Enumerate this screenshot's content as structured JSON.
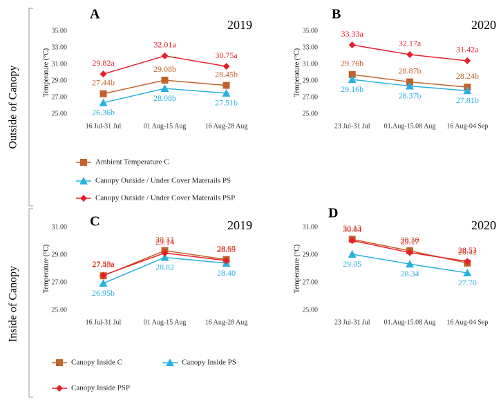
{
  "row_labels": [
    "Outside of Canopy",
    "Inside of Canopy"
  ],
  "chart_data": [
    {
      "type": "line",
      "title": "A",
      "subtitle": "2019",
      "y_label": "Temperature (°C)",
      "categories": [
        "16 Jul-31 Jul",
        "01 Aug-15 Aug",
        "16 Aug-28 Aug"
      ],
      "ylim": [
        25,
        35
      ],
      "yticks": [
        {
          "value": 25,
          "label": "25.00"
        },
        {
          "value": 27,
          "label": "27.00"
        },
        {
          "value": 29,
          "label": "29.00"
        },
        {
          "value": 31,
          "label": "31.00"
        },
        {
          "value": 33,
          "label": "33.00"
        },
        {
          "value": 35,
          "label": "35.00"
        }
      ],
      "series": [
        {
          "name": "Ambient Temperature  C",
          "color": "#c0622a",
          "marker": "square",
          "values": [
            27.44,
            29.08,
            28.45
          ],
          "value_labels": [
            "27.44b",
            "29.08b",
            "28.45b"
          ]
        },
        {
          "name": "Canopy Outside / Under Cover Materails PS",
          "color": "#2ab0e0",
          "marker": "triangle",
          "values": [
            26.36,
            28.08,
            27.51
          ],
          "value_labels": [
            "26.36b",
            "28.08b",
            "27.51b"
          ]
        },
        {
          "name": "Canopy Outside / Under Cover Materails PSP",
          "color": "#e5202a",
          "marker": "diamond",
          "values": [
            29.82,
            32.01,
            30.75
          ],
          "value_labels": [
            "29.82a",
            "32.01a",
            "30.75a"
          ]
        }
      ]
    },
    {
      "type": "line",
      "title": "B",
      "subtitle": "2020",
      "y_label": "Temperature (°C)",
      "categories": [
        "23 Jul-31 Jul",
        "01.Aug-15.08 Aug",
        "16 Aug-04 Sep"
      ],
      "ylim": [
        25,
        35
      ],
      "yticks": [
        {
          "value": 25,
          "label": "25.00"
        },
        {
          "value": 27,
          "label": "27.00"
        },
        {
          "value": 29,
          "label": "29.00"
        },
        {
          "value": 31,
          "label": "31.00"
        },
        {
          "value": 33,
          "label": "33.00"
        },
        {
          "value": 35,
          "label": "35.00"
        }
      ],
      "series": [
        {
          "name": "Ambient Temperature  C",
          "color": "#c0622a",
          "marker": "square",
          "values": [
            29.76,
            28.87,
            28.24
          ],
          "value_labels": [
            "29.76b",
            "28.87b",
            "28.24b"
          ]
        },
        {
          "name": "Canopy Outside / Under Cover Materails PS",
          "color": "#2ab0e0",
          "marker": "triangle",
          "values": [
            29.16,
            28.37,
            27.81
          ],
          "value_labels": [
            "29.16b",
            "28.37b",
            "27.81b"
          ]
        },
        {
          "name": "Canopy Outside / Under Cover Materails PSP",
          "color": "#e5202a",
          "marker": "diamond",
          "values": [
            33.33,
            32.17,
            31.42
          ],
          "value_labels": [
            "33.33a",
            "32.17a",
            "31.42a"
          ]
        }
      ]
    },
    {
      "type": "line",
      "title": "C",
      "subtitle": "2019",
      "y_label": "Temperature (°C)",
      "categories": [
        "16 Jul-31 Jul",
        "01 Aug-15 Aug",
        "16 Aug-28 Aug"
      ],
      "ylim": [
        25,
        31
      ],
      "yticks": [
        {
          "value": 25,
          "label": "25.00"
        },
        {
          "value": 27,
          "label": "27.00"
        },
        {
          "value": 29,
          "label": "29.00"
        },
        {
          "value": 31,
          "label": "31.00"
        }
      ],
      "series": [
        {
          "name": "Canopy Inside C",
          "color": "#c0622a",
          "marker": "square",
          "values": [
            27.49,
            29.31,
            28.67
          ],
          "value_labels": [
            "27.49a",
            "29.31",
            "28.67"
          ]
        },
        {
          "name": "Canopy Inside PS",
          "color": "#2ab0e0",
          "marker": "triangle",
          "values": [
            26.95,
            28.82,
            28.4
          ],
          "value_labels": [
            "26.95b",
            "28.82",
            "28.40"
          ]
        },
        {
          "name": "Canopy Inside PSP",
          "color": "#e5202a",
          "marker": "diamond",
          "values": [
            27.53,
            29.14,
            28.59
          ],
          "value_labels": [
            "27.53a",
            "29.14",
            "28.59"
          ]
        }
      ]
    },
    {
      "type": "line",
      "title": "D",
      "subtitle": "2020",
      "y_label": "Temperature (°C)",
      "categories": [
        "23 Jul-31 Jul",
        "01.Aug-15.08 Aug",
        "16 Aug-04 Sep"
      ],
      "ylim": [
        25,
        31
      ],
      "yticks": [
        {
          "value": 25,
          "label": "25.00"
        },
        {
          "value": 27,
          "label": "27.00"
        },
        {
          "value": 29,
          "label": "29.00"
        },
        {
          "value": 31,
          "label": "31.00"
        }
      ],
      "series": [
        {
          "name": "Canopy Inside C",
          "color": "#c0622a",
          "marker": "square",
          "values": [
            30.13,
            29.3,
            28.41
          ],
          "value_labels": [
            "30.13",
            "29.30",
            "28.41"
          ]
        },
        {
          "name": "Canopy Inside PS",
          "color": "#2ab0e0",
          "marker": "triangle",
          "values": [
            29.05,
            28.34,
            27.7
          ],
          "value_labels": [
            "29.05",
            "28.34",
            "27.70"
          ]
        },
        {
          "name": "Canopy Inside PSP",
          "color": "#e5202a",
          "marker": "diamond",
          "values": [
            30.04,
            29.17,
            28.53
          ],
          "value_labels": [
            "30.04",
            "29.17",
            "28.53"
          ]
        }
      ]
    }
  ]
}
